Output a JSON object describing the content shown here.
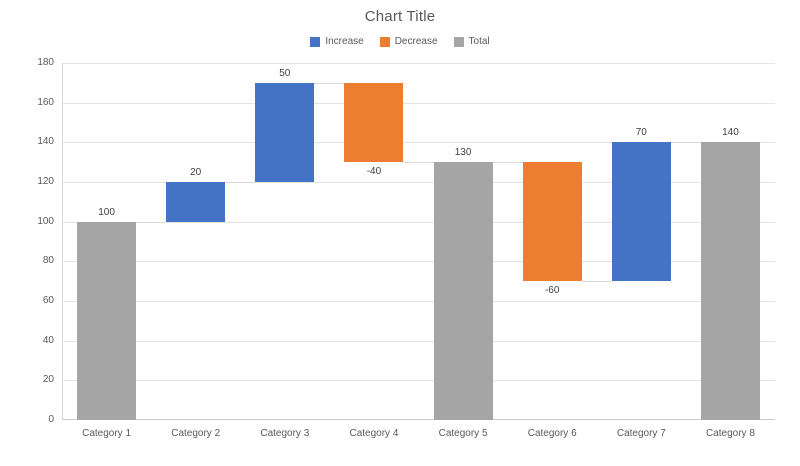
{
  "chart_data": {
    "type": "bar",
    "subtype": "waterfall",
    "title": "Chart Title",
    "legend_position": "top",
    "grid": true,
    "categories": [
      "Category 1",
      "Category 2",
      "Category 3",
      "Category 4",
      "Category 5",
      "Category 6",
      "Category 7",
      "Category 8"
    ],
    "points": [
      {
        "category": "Category 1",
        "value": 100,
        "label": "100",
        "kind": "total",
        "span": [
          0,
          100
        ],
        "label_position": "above"
      },
      {
        "category": "Category 2",
        "value": 20,
        "label": "20",
        "kind": "increase",
        "span": [
          100,
          120
        ],
        "label_position": "above"
      },
      {
        "category": "Category 3",
        "value": 50,
        "label": "50",
        "kind": "increase",
        "span": [
          120,
          170
        ],
        "label_position": "above"
      },
      {
        "category": "Category 4",
        "value": -40,
        "label": "-40",
        "kind": "decrease",
        "span": [
          130,
          170
        ],
        "label_position": "below"
      },
      {
        "category": "Category 5",
        "value": 130,
        "label": "130",
        "kind": "total",
        "span": [
          0,
          130
        ],
        "label_position": "above"
      },
      {
        "category": "Category 6",
        "value": -60,
        "label": "-60",
        "kind": "decrease",
        "span": [
          70,
          130
        ],
        "label_position": "below"
      },
      {
        "category": "Category 7",
        "value": 70,
        "label": "70",
        "kind": "increase",
        "span": [
          70,
          140
        ],
        "label_position": "above"
      },
      {
        "category": "Category 8",
        "value": 140,
        "label": "140",
        "kind": "total",
        "span": [
          0,
          140
        ],
        "label_position": "above"
      }
    ],
    "connectors": [
      100,
      120,
      170,
      130,
      130,
      70,
      140
    ],
    "legend": [
      {
        "label": "Increase",
        "color": "#4472C4"
      },
      {
        "label": "Decrease",
        "color": "#ED7D31"
      },
      {
        "label": "Total",
        "color": "#A5A5A5"
      }
    ],
    "y_axis": {
      "min": 0,
      "max": 180,
      "step": 20,
      "ticks": [
        "0",
        "20",
        "40",
        "60",
        "80",
        "100",
        "120",
        "140",
        "160",
        "180"
      ]
    },
    "xlabel": "",
    "ylabel": "",
    "colors": {
      "increase": "#4472C4",
      "decrease": "#ED7D31",
      "total": "#A5A5A5",
      "gridline": "#E3E3E3",
      "axis_line": "#C8C8C8",
      "y_axis_line": "#D9D9D9",
      "connector": "#D9D9D9",
      "text": "#595959",
      "data_label": "#404040"
    }
  }
}
